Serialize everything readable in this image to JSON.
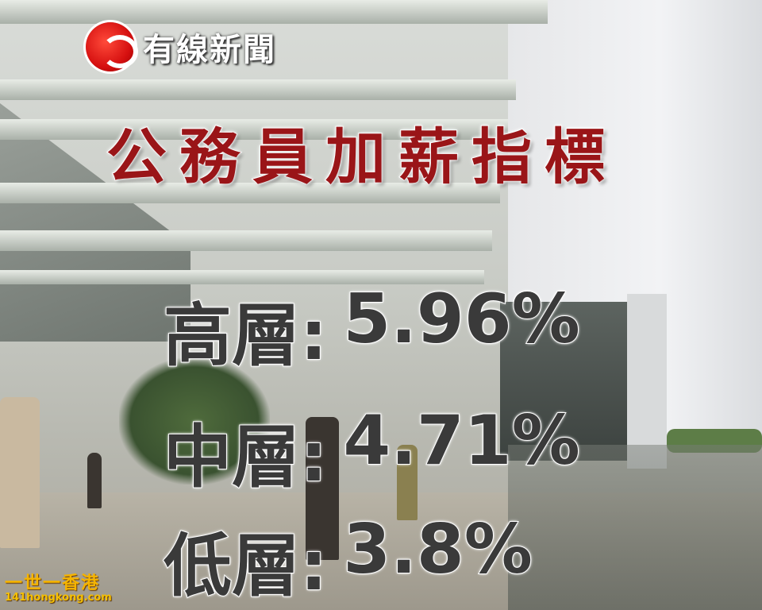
{
  "broadcast": {
    "channel_logo": {
      "text": "有線新聞",
      "icon": "cable-news-logo",
      "color": "#d50f0f"
    },
    "headline": "公務員加薪指標",
    "headline_color": "#9a1518",
    "pay_rises": [
      {
        "label": "高層:",
        "value": "5.96%"
      },
      {
        "label": "中層:",
        "value": "4.71%"
      },
      {
        "label": "低層:",
        "value": "3.8%"
      }
    ],
    "watermark": {
      "title": "一世一香港",
      "site": "141hongkong.com"
    }
  }
}
